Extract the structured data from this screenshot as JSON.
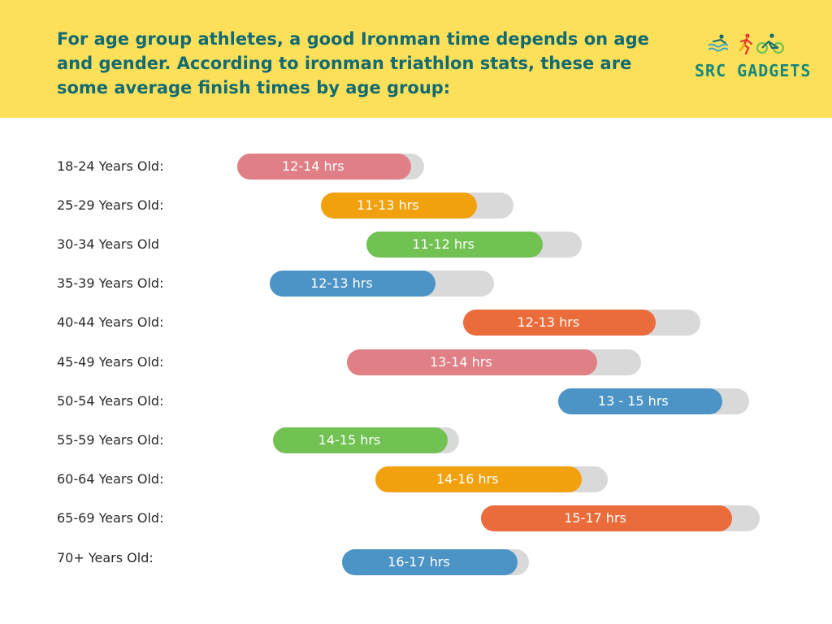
{
  "header": {
    "text": "For age group athletes, a good Ironman time depends on age and gender. According to ironman triathlon stats, these are some average finish times by age group:",
    "background": "#fde05a",
    "text_color": "#136b72"
  },
  "logo": {
    "text": "SRC GADGETS",
    "icons": [
      "swim-icon",
      "run-icon",
      "bike-icon"
    ]
  },
  "chart_data": {
    "type": "progress",
    "value_scale": "fractions of the 1024 px image width",
    "track_color": "#d9d9d9",
    "rows": [
      {
        "category": "18-24 Years Old:",
        "label": "12-14 hrs",
        "color": "#e07f86",
        "track_start": 0.285,
        "track_end": 0.51,
        "fill_fraction": 0.93
      },
      {
        "category": "25-29 Years Old:",
        "label": "11-13 hrs",
        "color": "#f2a10e",
        "track_start": 0.386,
        "track_end": 0.617,
        "fill_fraction": 0.81
      },
      {
        "category": "30-34 Years Old",
        "label": "11-12 hrs",
        "color": "#72c153",
        "track_start": 0.44,
        "track_end": 0.699,
        "fill_fraction": 0.82
      },
      {
        "category": "35-39 Years Old:",
        "label": "12-13 hrs",
        "color": "#4d94c6",
        "track_start": 0.324,
        "track_end": 0.594,
        "fill_fraction": 0.74
      },
      {
        "category": "40-44 Years Old:",
        "label": "12-13 hrs",
        "color": "#eb6c3b",
        "track_start": 0.557,
        "track_end": 0.842,
        "fill_fraction": 0.81
      },
      {
        "category": "45-49 Years Old:",
        "label": "13-14 hrs",
        "color": "#e07f86",
        "track_start": 0.417,
        "track_end": 0.771,
        "fill_fraction": 0.85
      },
      {
        "category": "50-54 Years Old:",
        "label": "13 - 15 hrs",
        "color": "#4d94c6",
        "track_start": 0.671,
        "track_end": 0.9,
        "fill_fraction": 0.86
      },
      {
        "category": "55-59 Years Old:",
        "label": "14-15 hrs",
        "color": "#72c153",
        "track_start": 0.328,
        "track_end": 0.552,
        "fill_fraction": 0.94
      },
      {
        "category": "60-64 Years Old:",
        "label": "14-16 hrs",
        "color": "#f2a10e",
        "track_start": 0.451,
        "track_end": 0.73,
        "fill_fraction": 0.89
      },
      {
        "category": "65-69 Years Old:",
        "label": "15-17 hrs",
        "color": "#eb6c3b",
        "track_start": 0.578,
        "track_end": 0.913,
        "fill_fraction": 0.9
      },
      {
        "category": "70+ Years Old:",
        "label": "16-17 hrs",
        "color": "#4d94c6",
        "track_start": 0.411,
        "track_end": 0.636,
        "fill_fraction": 0.94
      }
    ]
  }
}
